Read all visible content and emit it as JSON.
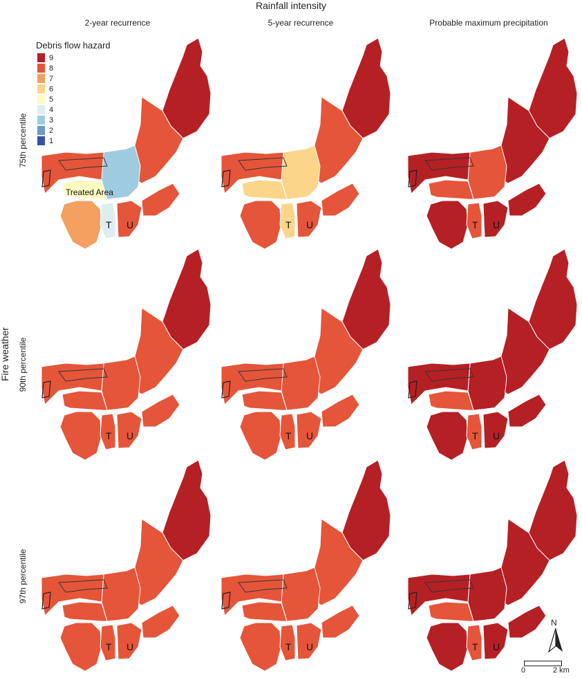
{
  "header": {
    "title": "Rainfall intensity",
    "columns": [
      "2-year recurrence",
      "5-year recurrence",
      "Probable maximum precipitation"
    ]
  },
  "rows": {
    "axis_title": "Fire weather",
    "labels": [
      "75th percentile",
      "90th percentile",
      "97th percentile"
    ]
  },
  "legend": {
    "title": "Debris flow hazard",
    "items": [
      {
        "label": "9",
        "color": "#b52025"
      },
      {
        "label": "8",
        "color": "#e5553a"
      },
      {
        "label": "7",
        "color": "#f4a060"
      },
      {
        "label": "6",
        "color": "#fbd589"
      },
      {
        "label": "5",
        "color": "#fefbc2"
      },
      {
        "label": "4",
        "color": "#deedf0"
      },
      {
        "label": "3",
        "color": "#9fcbe0"
      },
      {
        "label": "2",
        "color": "#6e9ac8"
      },
      {
        "label": "1",
        "color": "#3653a3"
      }
    ]
  },
  "map_labels": {
    "treated_area": "Treated Area",
    "basin_t": "T",
    "basin_u": "U"
  },
  "panels": [
    {
      "row": "75th percentile",
      "column": "2-year recurrence",
      "levels": {
        "main_east": 8,
        "ne_arm": 9,
        "center_north": 3,
        "center_west": 5,
        "south_west": 7,
        "basin_t": 4,
        "basin_u": 8,
        "west": 8
      }
    },
    {
      "row": "75th percentile",
      "column": "5-year recurrence",
      "levels": {
        "main_east": 8,
        "ne_arm": 9,
        "center_north": 6,
        "center_west": 6,
        "south_west": 8,
        "basin_t": 6,
        "basin_u": 8,
        "west": 8
      }
    },
    {
      "row": "75th percentile",
      "column": "Probable maximum precipitation",
      "levels": {
        "main_east": 9,
        "ne_arm": 9,
        "center_north": 8,
        "center_west": 8,
        "south_west": 9,
        "basin_t": 8,
        "basin_u": 9,
        "west": 9
      }
    },
    {
      "row": "90th percentile",
      "column": "2-year recurrence",
      "levels": {
        "main_east": 8,
        "ne_arm": 9,
        "center_north": 8,
        "center_west": 8,
        "south_west": 8,
        "basin_t": 8,
        "basin_u": 8,
        "west": 8
      }
    },
    {
      "row": "90th percentile",
      "column": "5-year recurrence",
      "levels": {
        "main_east": 8,
        "ne_arm": 9,
        "center_north": 8,
        "center_west": 8,
        "south_west": 8,
        "basin_t": 8,
        "basin_u": 8,
        "west": 8
      }
    },
    {
      "row": "90th percentile",
      "column": "Probable maximum precipitation",
      "levels": {
        "main_east": 9,
        "ne_arm": 9,
        "center_north": 9,
        "center_west": 8,
        "south_west": 9,
        "basin_t": 8,
        "basin_u": 9,
        "west": 9
      }
    },
    {
      "row": "97th percentile",
      "column": "2-year recurrence",
      "levels": {
        "main_east": 8,
        "ne_arm": 9,
        "center_north": 8,
        "center_west": 8,
        "south_west": 8,
        "basin_t": 8,
        "basin_u": 8,
        "west": 8
      }
    },
    {
      "row": "97th percentile",
      "column": "5-year recurrence",
      "levels": {
        "main_east": 8,
        "ne_arm": 9,
        "center_north": 8,
        "center_west": 8,
        "south_west": 8,
        "basin_t": 8,
        "basin_u": 8,
        "west": 8
      }
    },
    {
      "row": "97th percentile",
      "column": "Probable maximum precipitation",
      "levels": {
        "main_east": 9,
        "ne_arm": 9,
        "center_north": 9,
        "center_west": 8,
        "south_west": 9,
        "basin_t": 8,
        "basin_u": 9,
        "west": 9
      }
    }
  ],
  "north_arrow": {
    "label": "N",
    "icon": "north-arrow-icon"
  },
  "scale_bar": {
    "start_label": "0",
    "end_label": "2 km"
  }
}
